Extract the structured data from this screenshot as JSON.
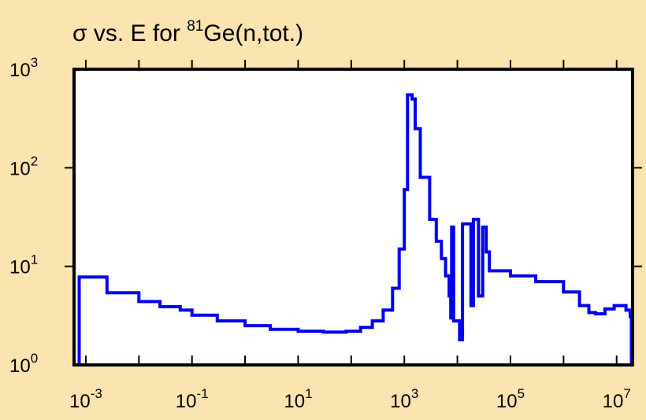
{
  "chart_data": {
    "type": "line",
    "title": {
      "prefix": "σ vs. E for ",
      "superscript": "81",
      "suffix": "Ge(n,tot.)"
    },
    "xlabel": "",
    "ylabel": "",
    "x_scale": "log",
    "y_scale": "log",
    "xlim": [
      0.0006,
      20000000
    ],
    "ylim": [
      1,
      1000
    ],
    "x_ticks": [
      {
        "base": "10",
        "exp": "-3",
        "value": 0.001
      },
      {
        "base": "10",
        "exp": "-1",
        "value": 0.1
      },
      {
        "base": "10",
        "exp": "1",
        "value": 10
      },
      {
        "base": "10",
        "exp": "3",
        "value": 1000
      },
      {
        "base": "10",
        "exp": "5",
        "value": 100000
      },
      {
        "base": "10",
        "exp": "7",
        "value": 10000000
      }
    ],
    "y_ticks": [
      {
        "base": "10",
        "exp": "0",
        "value": 1
      },
      {
        "base": "10",
        "exp": "1",
        "value": 10
      },
      {
        "base": "10",
        "exp": "2",
        "value": 100
      },
      {
        "base": "10",
        "exp": "3",
        "value": 1000
      }
    ],
    "grid": false,
    "series": [
      {
        "color": "#0000ee",
        "step": true,
        "points": [
          [
            0.00075,
            1.0
          ],
          [
            0.00075,
            7.8
          ],
          [
            0.0025,
            7.8
          ],
          [
            0.0025,
            5.4
          ],
          [
            0.01,
            5.4
          ],
          [
            0.01,
            4.4
          ],
          [
            0.025,
            4.4
          ],
          [
            0.025,
            3.9
          ],
          [
            0.06,
            3.6
          ],
          [
            0.1,
            3.2
          ],
          [
            0.3,
            2.8
          ],
          [
            1,
            2.5
          ],
          [
            3,
            2.3
          ],
          [
            10,
            2.2
          ],
          [
            30,
            2.15
          ],
          [
            80,
            2.2
          ],
          [
            150,
            2.4
          ],
          [
            250,
            2.8
          ],
          [
            400,
            3.6
          ],
          [
            600,
            6
          ],
          [
            800,
            15
          ],
          [
            1000,
            60
          ],
          [
            1150,
            550
          ],
          [
            1400,
            500
          ],
          [
            1600,
            250
          ],
          [
            2000,
            80
          ],
          [
            3000,
            30
          ],
          [
            4000,
            18
          ],
          [
            5000,
            12
          ],
          [
            6000,
            8
          ],
          [
            7000,
            5
          ],
          [
            7500,
            3.0
          ],
          [
            7800,
            25
          ],
          [
            8500,
            25
          ],
          [
            8500,
            2.8
          ],
          [
            11000,
            2.8
          ],
          [
            11000,
            1.8
          ],
          [
            12500,
            1.8
          ],
          [
            12500,
            27
          ],
          [
            18000,
            27
          ],
          [
            18000,
            4
          ],
          [
            20000,
            4
          ],
          [
            20000,
            30
          ],
          [
            25000,
            30
          ],
          [
            25000,
            5
          ],
          [
            30000,
            5
          ],
          [
            30000,
            25
          ],
          [
            35000,
            25
          ],
          [
            35000,
            14
          ],
          [
            40000,
            14
          ],
          [
            40000,
            9
          ],
          [
            100000,
            8
          ],
          [
            300000,
            7
          ],
          [
            1000000,
            5.5
          ],
          [
            2000000,
            4
          ],
          [
            3000000,
            3.4
          ],
          [
            4000000,
            3.3
          ],
          [
            6000000,
            3.7
          ],
          [
            9000000,
            4.0
          ],
          [
            12000000,
            4.0
          ],
          [
            15000000,
            3.6
          ],
          [
            18000000,
            3.1
          ],
          [
            19000000,
            1.0
          ]
        ]
      }
    ]
  }
}
